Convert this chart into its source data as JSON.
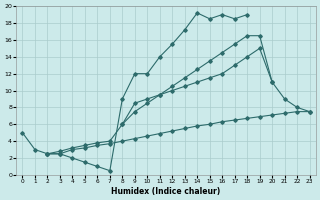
{
  "xlabel": "Humidex (Indice chaleur)",
  "background_color": "#cceaea",
  "grid_color": "#aacccc",
  "line_color": "#2d6b6b",
  "xlim": [
    -0.5,
    23.5
  ],
  "ylim": [
    0,
    20
  ],
  "xticks": [
    0,
    1,
    2,
    3,
    4,
    5,
    6,
    7,
    8,
    9,
    10,
    11,
    12,
    13,
    14,
    15,
    16,
    17,
    18,
    19,
    20,
    21,
    22,
    23
  ],
  "yticks": [
    0,
    2,
    4,
    6,
    8,
    10,
    12,
    14,
    16,
    18,
    20
  ],
  "series1_x": [
    0,
    1,
    2,
    3,
    4,
    5,
    6,
    7,
    8,
    9,
    10,
    11,
    12,
    13,
    14,
    15,
    16,
    17,
    18
  ],
  "series1_y": [
    5,
    3,
    2.5,
    2.5,
    2,
    1.5,
    1,
    0.5,
    9,
    12,
    12,
    14,
    15.5,
    17.2,
    19.2,
    18.5,
    19,
    18.5,
    19
  ],
  "series2_x": [
    2,
    3,
    4,
    5,
    6,
    7,
    8,
    9,
    10,
    11,
    12,
    13,
    14,
    15,
    16,
    17,
    18,
    19,
    20,
    21,
    22,
    23
  ],
  "series2_y": [
    2.5,
    2.5,
    3.0,
    3.2,
    3.5,
    3.7,
    4.0,
    4.3,
    4.6,
    4.9,
    5.2,
    5.5,
    5.8,
    6.0,
    6.3,
    6.5,
    6.7,
    6.9,
    7.1,
    7.3,
    7.5,
    7.5
  ],
  "series3_x": [
    2,
    3,
    4,
    5,
    6,
    7,
    8,
    9,
    10,
    11,
    12,
    13,
    14,
    15,
    16,
    17,
    18,
    19,
    20,
    21,
    22,
    23
  ],
  "series3_y": [
    2.5,
    2.8,
    3.2,
    3.5,
    3.8,
    4.0,
    6.0,
    8.5,
    9.0,
    9.5,
    10.0,
    10.5,
    11.0,
    11.5,
    12.0,
    13.0,
    14.0,
    15.0,
    11.0,
    9.0,
    8.0,
    7.5
  ],
  "series4_x": [
    8,
    9,
    10,
    11,
    12,
    13,
    14,
    15,
    16,
    17,
    18,
    19,
    20
  ],
  "series4_y": [
    6.0,
    7.5,
    8.5,
    9.5,
    10.5,
    11.5,
    12.5,
    13.5,
    14.5,
    15.5,
    16.5,
    16.5,
    11
  ]
}
